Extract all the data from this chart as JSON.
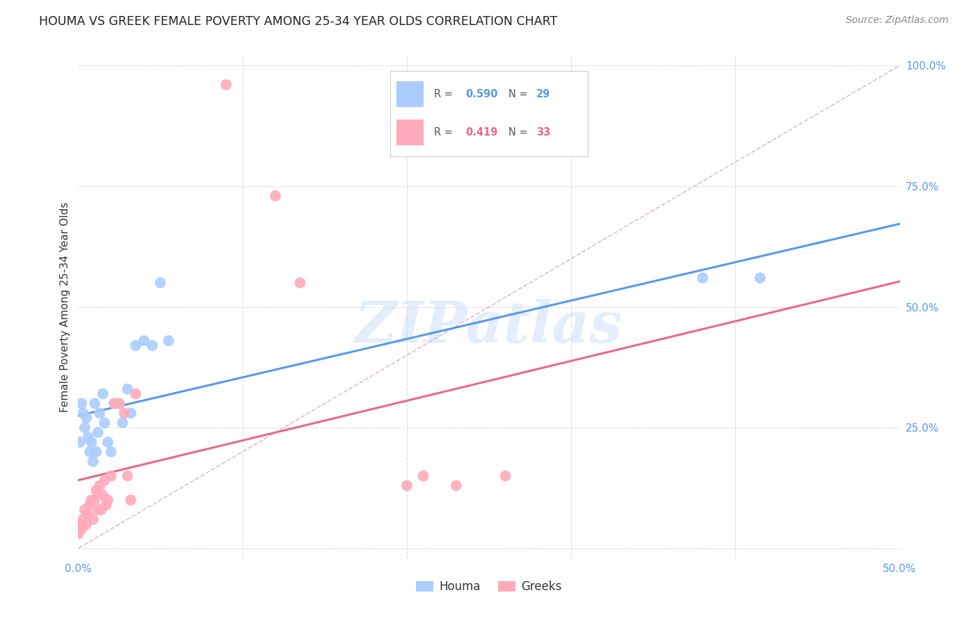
{
  "title": "HOUMA VS GREEK FEMALE POVERTY AMONG 25-34 YEAR OLDS CORRELATION CHART",
  "source": "Source: ZipAtlas.com",
  "ylabel": "Female Poverty Among 25-34 Year Olds",
  "xlim": [
    0.0,
    0.5
  ],
  "ylim": [
    -0.02,
    1.02
  ],
  "houma_R": 0.59,
  "houma_N": 29,
  "greek_R": 0.419,
  "greek_N": 33,
  "houma_color": "#aaccff",
  "greek_color": "#ffaabb",
  "houma_line_color": "#5599ee",
  "greek_line_color": "#ee6688",
  "diagonal_color": "#ddaabb",
  "watermark_color": "#c8ddf8",
  "background_color": "#ffffff",
  "grid_color": "#dddddd",
  "houma_x": [
    0.001,
    0.002,
    0.003,
    0.004,
    0.005,
    0.006,
    0.007,
    0.008,
    0.009,
    0.01,
    0.011,
    0.012,
    0.013,
    0.015,
    0.016,
    0.018,
    0.02,
    0.022,
    0.025,
    0.027,
    0.03,
    0.032,
    0.035,
    0.04,
    0.045,
    0.05,
    0.055,
    0.38,
    0.415
  ],
  "houma_y": [
    0.22,
    0.3,
    0.28,
    0.25,
    0.27,
    0.23,
    0.2,
    0.22,
    0.18,
    0.3,
    0.2,
    0.24,
    0.28,
    0.32,
    0.26,
    0.22,
    0.2,
    0.3,
    0.3,
    0.26,
    0.33,
    0.28,
    0.42,
    0.43,
    0.42,
    0.55,
    0.43,
    0.56,
    0.56
  ],
  "greek_x": [
    0.0,
    0.001,
    0.002,
    0.003,
    0.004,
    0.005,
    0.006,
    0.007,
    0.008,
    0.009,
    0.01,
    0.011,
    0.012,
    0.013,
    0.014,
    0.015,
    0.016,
    0.017,
    0.018,
    0.02,
    0.022,
    0.025,
    0.028,
    0.03,
    0.032,
    0.035,
    0.09,
    0.12,
    0.135,
    0.2,
    0.21,
    0.23,
    0.26
  ],
  "greek_y": [
    0.03,
    0.05,
    0.04,
    0.06,
    0.08,
    0.05,
    0.07,
    0.09,
    0.1,
    0.06,
    0.1,
    0.12,
    0.08,
    0.13,
    0.08,
    0.11,
    0.14,
    0.09,
    0.1,
    0.15,
    0.3,
    0.3,
    0.28,
    0.15,
    0.1,
    0.32,
    0.96,
    0.73,
    0.55,
    0.13,
    0.15,
    0.13,
    0.15
  ]
}
